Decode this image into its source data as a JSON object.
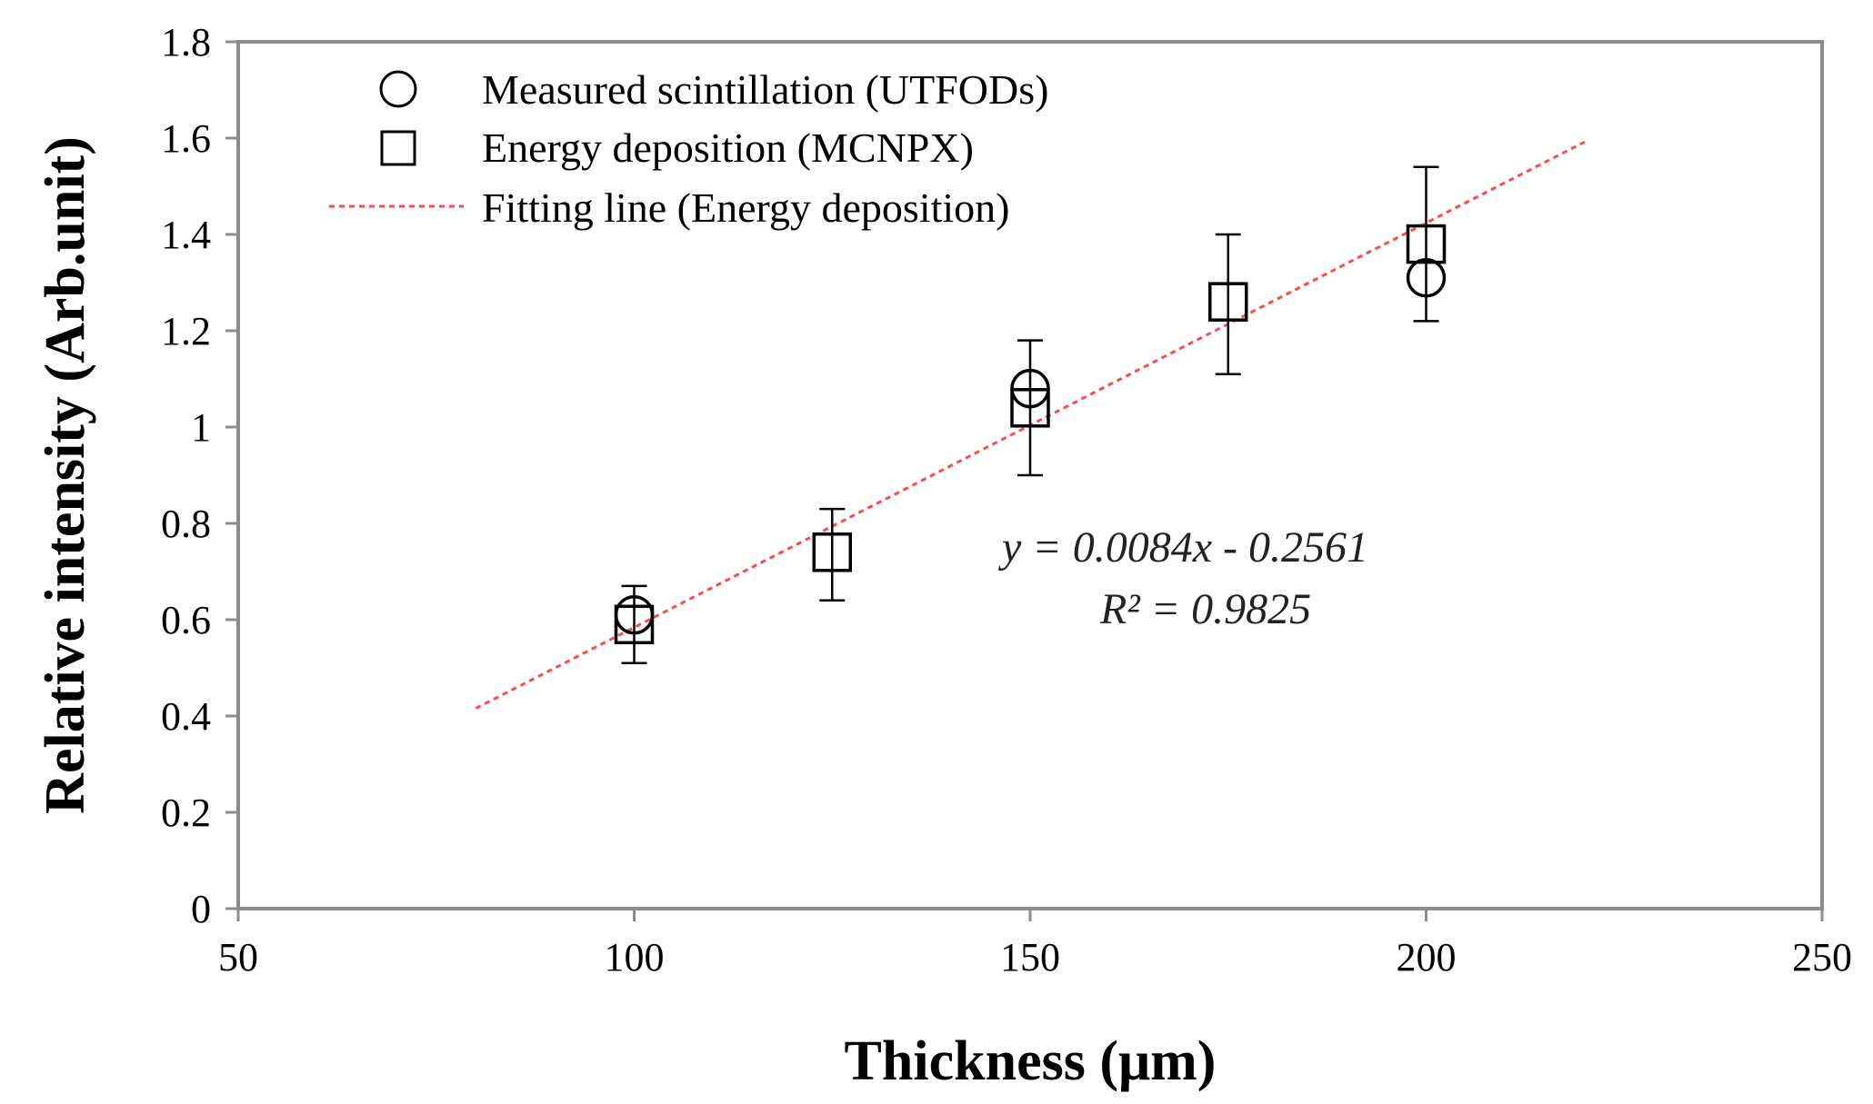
{
  "chart_data": {
    "type": "scatter",
    "xlabel": "Thickness (μm)",
    "ylabel": "Relative intensity (Arb.unit)",
    "xlim": [
      50,
      250
    ],
    "ylim": [
      0,
      1.8
    ],
    "xticks": [
      "50",
      "100",
      "150",
      "200",
      "250"
    ],
    "yticks": [
      "0",
      "0.2",
      "0.4",
      "0.6",
      "0.8",
      "1",
      "1.2",
      "1.4",
      "1.6",
      "1.8"
    ],
    "grid": false,
    "legend_position": "top-left",
    "series": [
      {
        "name": "Measured scintillation (UTFODs)",
        "marker": "circle",
        "x": [
          100,
          150,
          200
        ],
        "y": [
          0.61,
          1.08,
          1.31
        ]
      },
      {
        "name": "Energy deposition (MCNPX)",
        "marker": "square",
        "x": [
          100,
          125,
          150,
          175,
          200
        ],
        "y": [
          0.59,
          0.74,
          1.04,
          1.26,
          1.38
        ],
        "error_low": [
          0.51,
          0.64,
          0.9,
          1.11,
          1.22
        ],
        "error_high": [
          0.67,
          0.83,
          1.18,
          1.4,
          1.54
        ]
      },
      {
        "name": "Fitting line (Energy deposition)",
        "style": "dashed",
        "color": "#ff4a4a",
        "slope": 0.0084,
        "intercept": -0.2561,
        "x_range": [
          80,
          220
        ]
      }
    ],
    "annotations": {
      "equation": "y = 0.0084x - 0.2561",
      "r_squared": "R² = 0.9825"
    }
  }
}
